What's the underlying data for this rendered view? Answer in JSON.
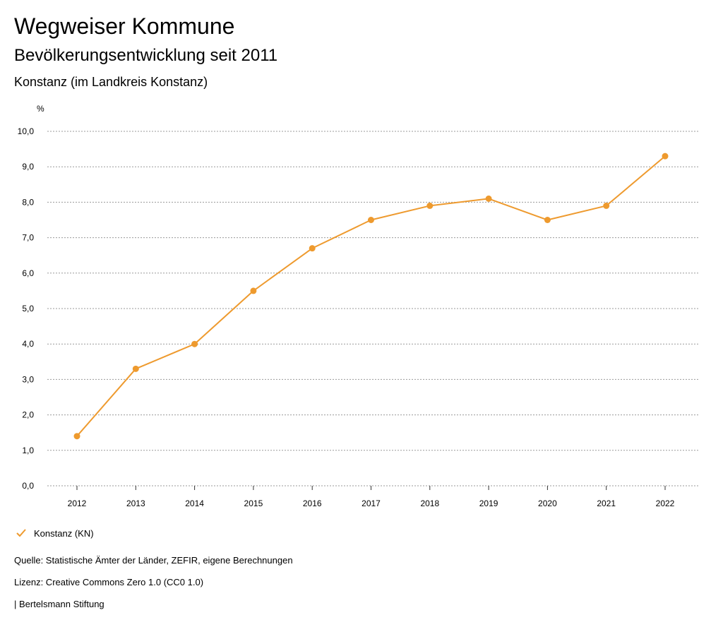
{
  "header": {
    "title": "Wegweiser Kommune",
    "subtitle": "Bevölkerungsentwicklung seit 2011",
    "region": "Konstanz (im Landkreis Konstanz)"
  },
  "legend": {
    "label": "Konstanz (KN)",
    "icon": "check-icon"
  },
  "footer": {
    "source": "Quelle: Statistische Ämter der Länder, ZEFIR, eigene Berechnungen",
    "license": "Lizenz: Creative Commons Zero 1.0 (CC0 1.0)",
    "publisher": "| Bertelsmann Stiftung"
  },
  "colors": {
    "series": "#EE9A2E",
    "grid": "#9a9a9a",
    "axis": "#333333"
  },
  "chart_data": {
    "type": "line",
    "title": "Bevölkerungsentwicklung seit 2011",
    "xlabel": "",
    "ylabel": "%",
    "categories": [
      "2012",
      "2013",
      "2014",
      "2015",
      "2016",
      "2017",
      "2018",
      "2019",
      "2020",
      "2021",
      "2022"
    ],
    "ylim": [
      0,
      10
    ],
    "yticks": [
      "0,0",
      "1,0",
      "2,0",
      "3,0",
      "4,0",
      "5,0",
      "6,0",
      "7,0",
      "8,0",
      "9,0",
      "10,0"
    ],
    "grid": true,
    "legend_position": "bottom-left",
    "series": [
      {
        "name": "Konstanz (KN)",
        "values": [
          1.4,
          3.3,
          4.0,
          5.5,
          6.7,
          7.5,
          7.9,
          8.1,
          7.5,
          7.9,
          9.3
        ]
      }
    ]
  }
}
